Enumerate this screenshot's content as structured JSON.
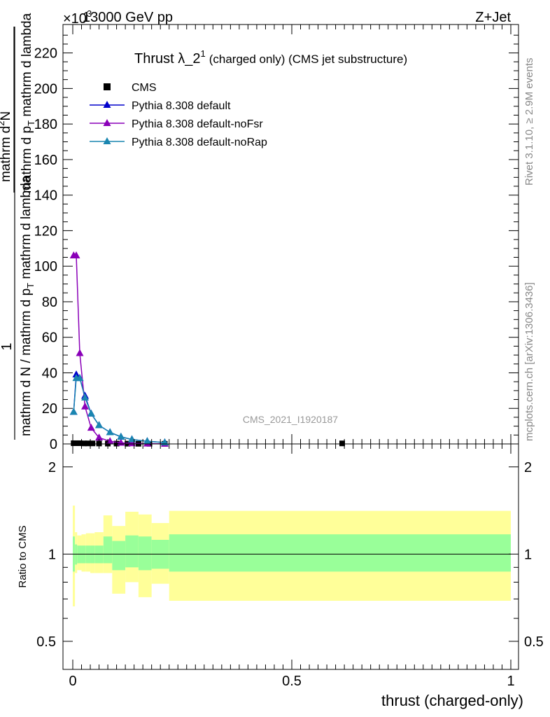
{
  "header": {
    "energy": "13000 GeV pp",
    "process": "Z+Jet",
    "exponent": "×10",
    "exponent_power": "3"
  },
  "side_labels": {
    "rivet": "Rivet 3.1.10, ≥ 2.9M events",
    "mcplots": "mcplots.cern.ch [arXiv:1306.3436]"
  },
  "main_plot": {
    "title_main": "Thrust λ_2",
    "title_sup": "1",
    "title_rest": "(charged only) (CMS jet substructure)",
    "ylabel_num": "1",
    "ylabel_den": "mathrm d N / mathrm d p",
    "ylabel_den_sub": "T",
    "ylabel_den_rest": "mathrm d lambda",
    "ylabel_top": "mathrm d",
    "ylabel_top_sup": "2",
    "ylabel_top_rest": "N",
    "ylabel_top_den": "mathrm d p",
    "ylabel_top_den_sub": "T",
    "ylabel_top_den_rest": "mathrm d lambda",
    "analysis_id": "CMS_2021_I1920187",
    "yticks": [
      "0",
      "20",
      "40",
      "60",
      "80",
      "100",
      "120",
      "140",
      "160",
      "180",
      "200",
      "220"
    ]
  },
  "ratio_plot": {
    "ylabel": "Ratio to CMS",
    "yticks": [
      "0.5",
      "1",
      "2"
    ],
    "xticks": [
      "0",
      "0.5",
      "1"
    ],
    "xlabel": "thrust (charged-only)"
  },
  "legend": {
    "entries": [
      {
        "label": "CMS",
        "color": "#000000",
        "marker": "square"
      },
      {
        "label": "Pythia 8.308 default",
        "color": "#0000cc",
        "marker": "triangle"
      },
      {
        "label": "Pythia 8.308 default-noFsr",
        "color": "#8a00b8",
        "marker": "triangle"
      },
      {
        "label": "Pythia 8.308 default-noRap",
        "color": "#1a86b0",
        "marker": "triangle"
      }
    ]
  },
  "chart_data": {
    "type": "line",
    "xlim": [
      0,
      1
    ],
    "ylim": [
      0,
      236
    ],
    "y_multiplier": 1000,
    "ratio_ylim": [
      0.4,
      2.4
    ],
    "ratio_log": true,
    "series": [
      {
        "name": "CMS",
        "color": "#000000",
        "marker": "square",
        "line": false,
        "x": [
          0.002,
          0.008,
          0.016,
          0.025,
          0.035,
          0.045,
          0.06,
          0.08,
          0.1,
          0.125,
          0.15,
          0.175,
          0.21,
          0.615
        ],
        "y": [
          0.4,
          0.4,
          0.4,
          0.3,
          0.3,
          0.3,
          0.25,
          0.2,
          0.2,
          0.15,
          0.1,
          0.1,
          0.08,
          0.3
        ]
      },
      {
        "name": "Pythia 8.308 default",
        "color": "#0000cc",
        "marker": "triangle",
        "line": true,
        "x": [
          0.002,
          0.008,
          0.016,
          0.028,
          0.042,
          0.06,
          0.085,
          0.11,
          0.135,
          0.17,
          0.21
        ],
        "y": [
          18,
          39,
          37,
          27,
          17,
          10.5,
          6.5,
          4,
          2.5,
          1.5,
          0.8
        ]
      },
      {
        "name": "Pythia 8.308 default-noFsr",
        "color": "#8a00b8",
        "marker": "triangle",
        "line": true,
        "x": [
          0.002,
          0.008,
          0.016,
          0.028,
          0.042,
          0.06,
          0.085,
          0.11,
          0.135,
          0.17,
          0.21
        ],
        "y": [
          106,
          106,
          51,
          21,
          9,
          3.5,
          1.5,
          0.6,
          0.3,
          0.15,
          0.05
        ]
      },
      {
        "name": "Pythia 8.308 default-noRap",
        "color": "#1a86b0",
        "marker": "triangle",
        "line": true,
        "x": [
          0.002,
          0.008,
          0.016,
          0.028,
          0.042,
          0.06,
          0.085,
          0.11,
          0.135,
          0.17,
          0.21
        ],
        "y": [
          18,
          37,
          37,
          26,
          17,
          10.5,
          6.5,
          4,
          2.5,
          1.5,
          0.8
        ]
      }
    ],
    "ratio_bands": {
      "edges": [
        0,
        0.005,
        0.01,
        0.02,
        0.03,
        0.04,
        0.05,
        0.07,
        0.09,
        0.12,
        0.15,
        0.18,
        0.22,
        1.0
      ],
      "yellow_lo": [
        0.66,
        0.86,
        0.88,
        0.87,
        0.87,
        0.86,
        0.86,
        0.86,
        0.73,
        0.8,
        0.71,
        0.79,
        0.69
      ],
      "yellow_hi": [
        1.47,
        1.19,
        1.16,
        1.17,
        1.18,
        1.18,
        1.19,
        1.36,
        1.25,
        1.4,
        1.37,
        1.28,
        1.41
      ],
      "green_lo": [
        0.87,
        0.92,
        0.93,
        0.93,
        0.93,
        0.93,
        0.93,
        0.93,
        0.88,
        0.9,
        0.88,
        0.89,
        0.87
      ],
      "green_hi": [
        1.15,
        1.08,
        1.07,
        1.07,
        1.07,
        1.07,
        1.07,
        1.15,
        1.11,
        1.16,
        1.15,
        1.12,
        1.17
      ]
    },
    "colors": {
      "yellow_band": "#ffff99",
      "green_band": "#99ff99"
    }
  }
}
